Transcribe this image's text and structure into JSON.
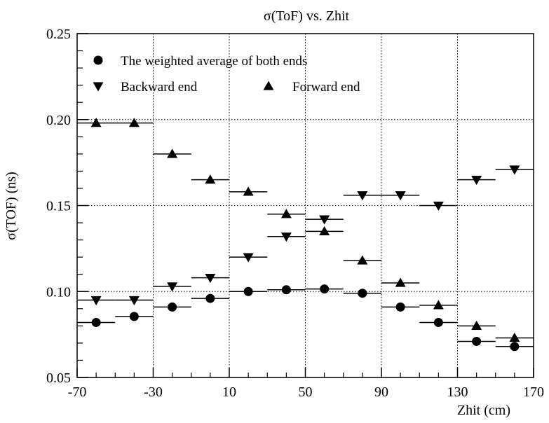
{
  "chart_data": {
    "type": "scatter",
    "title": "σ(ToF) vs. Zhit",
    "xlabel": "Zhit (cm)",
    "ylabel": "σ(TOF) (ns)",
    "xlim": [
      -70,
      170
    ],
    "ylim": [
      0.05,
      0.25
    ],
    "x_tick_labels": [
      "-70",
      "-30",
      "10",
      "50",
      "90",
      "130",
      "170"
    ],
    "y_tick_labels": [
      "0.05",
      "0.10",
      "0.15",
      "0.20",
      "0.25"
    ],
    "grid": "dotted",
    "legend_position": "top-left",
    "bin_half_width": 10,
    "series": [
      {
        "name": "The weighted average of both ends",
        "marker": "circle",
        "x": [
          -60,
          -40,
          -20,
          0,
          20,
          40,
          60,
          80,
          100,
          120,
          140,
          160
        ],
        "y": [
          0.082,
          0.0855,
          0.091,
          0.096,
          0.1,
          0.101,
          0.1015,
          0.099,
          0.091,
          0.082,
          0.071,
          0.068
        ]
      },
      {
        "name": "Backward end",
        "marker": "triangle-down",
        "x": [
          -60,
          -40,
          -20,
          0,
          20,
          40,
          60,
          80,
          100,
          120,
          140,
          160
        ],
        "y": [
          0.095,
          0.095,
          0.103,
          0.108,
          0.12,
          0.132,
          0.142,
          0.156,
          0.156,
          0.15,
          0.165,
          0.171
        ]
      },
      {
        "name": "Forward end",
        "marker": "triangle-up",
        "x": [
          -60,
          -40,
          -20,
          0,
          20,
          40,
          60,
          80,
          100,
          120,
          140,
          160
        ],
        "y": [
          0.198,
          0.198,
          0.18,
          0.165,
          0.158,
          0.145,
          0.135,
          0.118,
          0.105,
          0.092,
          0.08,
          0.073
        ]
      }
    ]
  }
}
